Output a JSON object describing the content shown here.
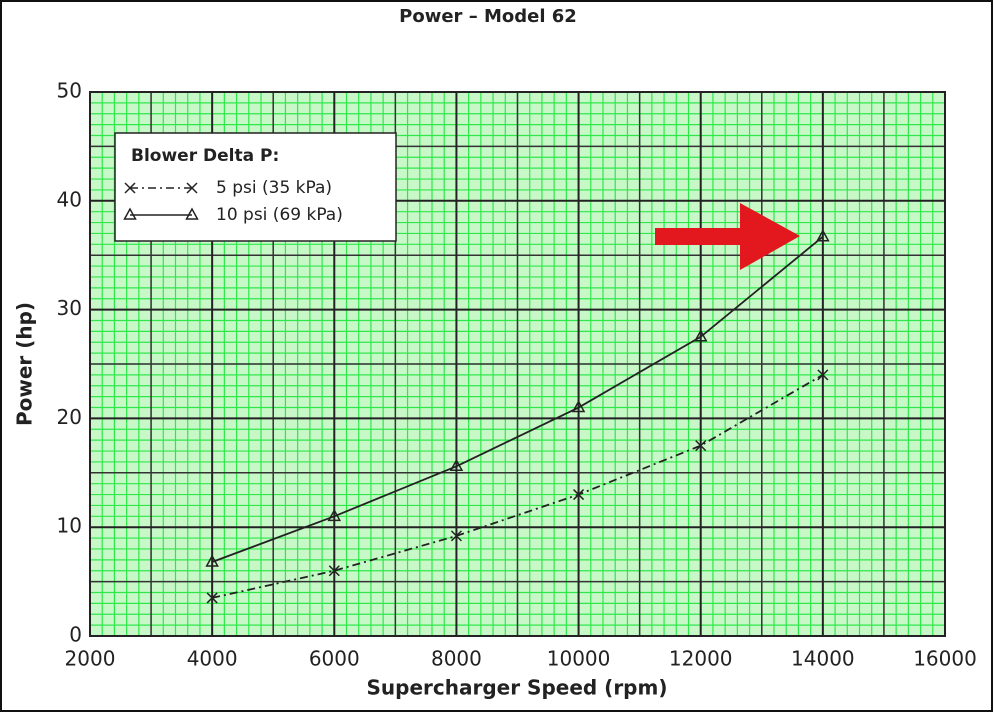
{
  "chart_data": {
    "type": "line",
    "title": "Power – Model 62",
    "x_label": "Supercharger Speed (rpm)",
    "y_label": "Power (hp)",
    "legend_title": "Blower Delta P:",
    "legend": "upper left",
    "grid": true,
    "x": [
      4000,
      6000,
      8000,
      10000,
      12000,
      14000
    ],
    "series": [
      {
        "name": "5 psi (35 kPa)",
        "color": "#222222",
        "marker": "x",
        "line_style": "dashdot",
        "values": [
          3.5,
          6,
          9.2,
          13,
          17.5,
          24
        ]
      },
      {
        "name": "10 psi (69 kPa)",
        "color": "#222222",
        "marker": "triangle",
        "line_style": "solid",
        "values": [
          6.8,
          11,
          15.6,
          21,
          27.5,
          36.7
        ]
      }
    ],
    "xlim": [
      2000,
      16000
    ],
    "xticks": [
      2000,
      4000,
      6000,
      8000,
      10000,
      12000,
      14000,
      16000
    ],
    "ylim": [
      0,
      50
    ],
    "yticks": [
      0,
      10,
      20,
      30,
      40,
      50
    ]
  }
}
